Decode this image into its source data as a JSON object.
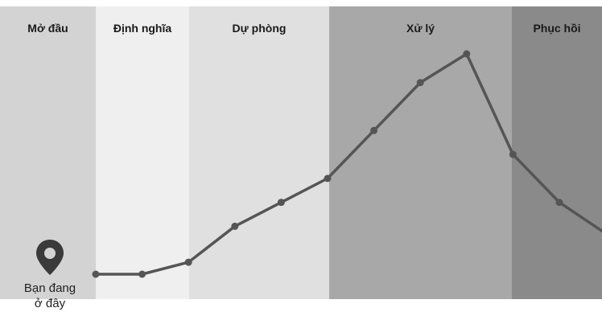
{
  "phases": [
    {
      "label": "Mở đầu",
      "color": "#d3d3d3"
    },
    {
      "label": "Định nghĩa",
      "color": "#efefef"
    },
    {
      "label": "Dự phòng",
      "color": "#e0e0e0"
    },
    {
      "label": "Xử lý",
      "color": "#a8a8a8"
    },
    {
      "label": "Phục hồi",
      "color": "#8a8a8a"
    }
  ],
  "marker": {
    "icon": "location-pin-icon",
    "label_line1": "Bạn đang",
    "label_line2": "ở đây"
  },
  "chart_data": {
    "type": "line",
    "values": [
      0,
      0,
      5,
      20,
      30,
      40,
      60,
      80,
      92,
      50,
      30,
      17
    ],
    "ylim": [
      0,
      100
    ],
    "line_color": "#555555"
  }
}
